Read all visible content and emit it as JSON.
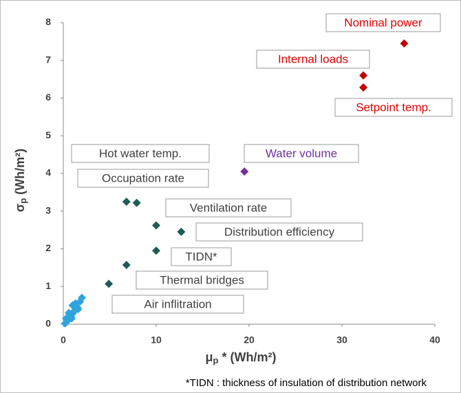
{
  "chart_data": {
    "type": "scatter",
    "x_label": {
      "main": "μ",
      "sub": "p",
      "rest": " * (Wh/m²)"
    },
    "y_label": {
      "main": "σ",
      "sub": "p",
      "rest": " (Wh/m²)"
    },
    "xlim": [
      0,
      40
    ],
    "xticks": [
      0,
      10,
      20,
      30,
      40
    ],
    "ylim": [
      0,
      8
    ],
    "yticks": [
      0,
      1,
      2,
      3,
      4,
      5,
      6,
      7,
      8
    ],
    "grid": false,
    "series": [
      {
        "color": "#c00000",
        "x": [
          36.7,
          32.3,
          32.3
        ],
        "y": [
          7.45,
          6.6,
          6.28
        ]
      },
      {
        "color": "#7030a0",
        "x": [
          19.5
        ],
        "y": [
          4.05
        ]
      },
      {
        "color": "#1f5c56",
        "x": [
          6.8,
          7.9,
          10,
          12.7,
          10,
          6.8,
          4.9
        ],
        "y": [
          3.25,
          3.22,
          2.62,
          2.45,
          1.95,
          1.57,
          1.07
        ]
      },
      {
        "color": "#2ea3dc",
        "x": [
          0.2,
          0.3,
          0.5,
          0.6,
          0.8,
          0.9,
          1.0,
          1.0,
          1.2,
          1.3,
          1.5,
          1.6,
          1.8,
          2.0
        ],
        "y": [
          0.02,
          0.15,
          0.1,
          0.3,
          0.2,
          0.15,
          0.28,
          0.5,
          0.35,
          0.55,
          0.45,
          0.4,
          0.6,
          0.7
        ]
      }
    ],
    "annotations": [
      {
        "text": "Nominal power",
        "color": "#e00000"
      },
      {
        "text": "Internal loads",
        "color": "#e00000"
      },
      {
        "text": "Setpoint temp.",
        "color": "#e00000"
      },
      {
        "text": "Hot water temp.",
        "color": "#404040"
      },
      {
        "text": "Occupation rate",
        "color": "#404040"
      },
      {
        "text": "Water volume",
        "color": "#7030a0"
      },
      {
        "text": "Ventilation rate",
        "color": "#404040"
      },
      {
        "text": "Distribution efficiency",
        "color": "#404040"
      },
      {
        "text": "TIDN*",
        "color": "#404040"
      },
      {
        "text": "Thermal bridges",
        "color": "#404040"
      },
      {
        "text": "Air inflitration",
        "color": "#404040"
      }
    ],
    "footnote": "*TIDN : thickness of insulation of distribution network"
  }
}
